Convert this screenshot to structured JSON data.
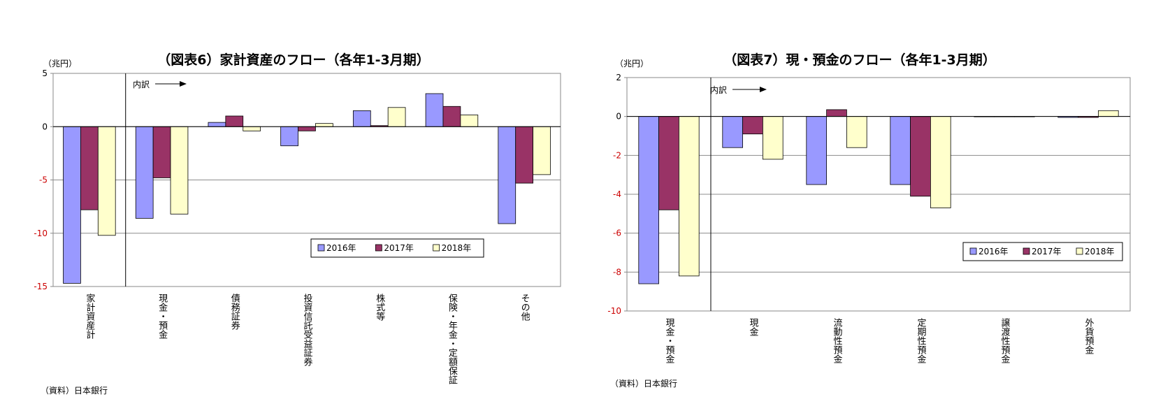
{
  "chart_data": [
    {
      "type": "bar",
      "title": "（図表6）家計資産のフロー（各年1-3月期）",
      "unit_label": "（兆円）",
      "source": "（資料）日本銀行",
      "breakdown_label": "内訳",
      "categories": [
        "家計資産計",
        "現金・預金",
        "債務証券",
        "投資信託受益証券",
        "株式等",
        "保険・年金・定額保証",
        "その他"
      ],
      "series": [
        {
          "name": "2016年",
          "color": "#9999ff",
          "values": [
            -14.7,
            -8.6,
            0.4,
            -1.8,
            1.5,
            3.1,
            -9.1
          ]
        },
        {
          "name": "2017年",
          "color": "#993366",
          "values": [
            -7.8,
            -4.8,
            1.0,
            -0.4,
            0.1,
            1.9,
            -5.3
          ]
        },
        {
          "name": "2018年",
          "color": "#ffffcc",
          "values": [
            -10.2,
            -8.2,
            -0.4,
            0.3,
            1.8,
            1.1,
            -4.5
          ]
        }
      ],
      "yticks": [
        5,
        0,
        -5,
        -10,
        -15
      ],
      "ylim": [
        -15,
        5
      ],
      "grid": true,
      "legend": "bottom-right"
    },
    {
      "type": "bar",
      "title": "（図表7）現・預金のフロー（各年1-3月期）",
      "unit_label": "（兆円）",
      "source": "（資料）日本銀行",
      "breakdown_label": "内訳",
      "categories": [
        "現金・預金",
        "現金",
        "流動性預金",
        "定期性預金",
        "譲渡性預金",
        "外貨預金"
      ],
      "series": [
        {
          "name": "2016年",
          "color": "#9999ff",
          "values": [
            -8.6,
            -1.6,
            -3.5,
            -3.5,
            0.0,
            -0.05
          ]
        },
        {
          "name": "2017年",
          "color": "#993366",
          "values": [
            -4.8,
            -0.9,
            0.35,
            -4.1,
            0.0,
            -0.05
          ]
        },
        {
          "name": "2018年",
          "color": "#ffffcc",
          "values": [
            -8.2,
            -2.2,
            -1.6,
            -4.7,
            0.0,
            0.3
          ]
        }
      ],
      "yticks": [
        2,
        0,
        -2,
        -4,
        -6,
        -8,
        -10
      ],
      "ylim": [
        -10,
        2
      ],
      "grid": true,
      "legend": "bottom-right"
    }
  ]
}
